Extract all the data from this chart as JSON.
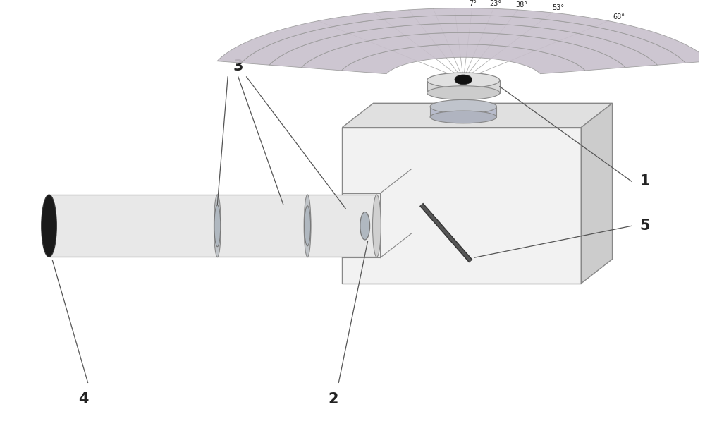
{
  "bg_color": "#ffffff",
  "box_edge": "#888888",
  "face_light": "#f2f2f2",
  "face_mid": "#e0e0e0",
  "face_dark": "#cccccc",
  "tube_face": "#e8e8e8",
  "lens_color": "#b0b8c0",
  "lens_edge": "#777777",
  "mirror_color": "#444444",
  "sensor_color": "#d0d0d0",
  "fisheye_black": "#111111",
  "arc_color": "#c8c0cc",
  "arc_edge": "#999999",
  "fan_line_color": "#aaaaaa",
  "label_color": "#222222",
  "line_color": "#555555",
  "angles": [
    7,
    23,
    38,
    53,
    68
  ],
  "angle_labels": [
    "7°",
    "23°",
    "38°",
    "53°",
    "68°"
  ],
  "font_size_labels": 15,
  "font_size_angles": 7
}
